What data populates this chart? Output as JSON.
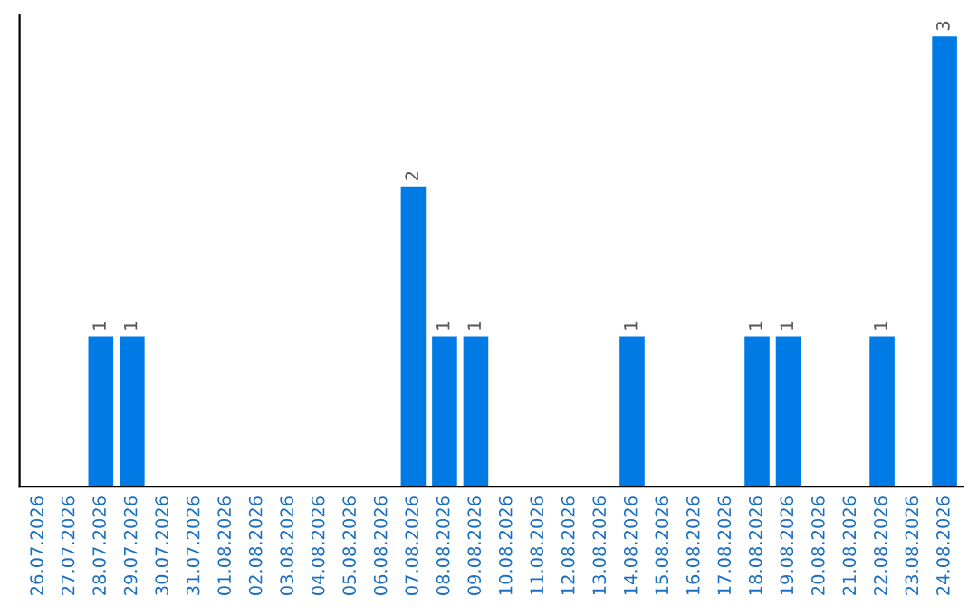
{
  "chart_data": {
    "type": "bar",
    "categories": [
      "26.07.2026",
      "27.07.2026",
      "28.07.2026",
      "29.07.2026",
      "30.07.2026",
      "31.07.2026",
      "01.08.2026",
      "02.08.2026",
      "03.08.2026",
      "04.08.2026",
      "05.08.2026",
      "06.08.2026",
      "07.08.2026",
      "08.08.2026",
      "09.08.2026",
      "10.08.2026",
      "11.08.2026",
      "12.08.2026",
      "13.08.2026",
      "14.08.2026",
      "15.08.2026",
      "16.08.2026",
      "17.08.2026",
      "18.08.2026",
      "19.08.2026",
      "20.08.2026",
      "21.08.2026",
      "22.08.2026",
      "23.08.2026",
      "24.08.2026"
    ],
    "values": [
      0,
      0,
      1,
      1,
      0,
      0,
      0,
      0,
      0,
      0,
      0,
      0,
      2,
      1,
      1,
      0,
      0,
      0,
      0,
      1,
      0,
      0,
      0,
      1,
      1,
      0,
      0,
      1,
      0,
      3
    ],
    "value_labels": [
      null,
      null,
      "1",
      "1",
      null,
      null,
      null,
      null,
      null,
      null,
      null,
      null,
      "2",
      "1",
      "1",
      null,
      null,
      null,
      null,
      "1",
      null,
      null,
      null,
      "1",
      "1",
      null,
      null,
      "1",
      null,
      "3"
    ],
    "color": "#007be5",
    "ylim": [
      0,
      3.14
    ],
    "tick_labels": "x",
    "grid": false,
    "legend": false
  }
}
